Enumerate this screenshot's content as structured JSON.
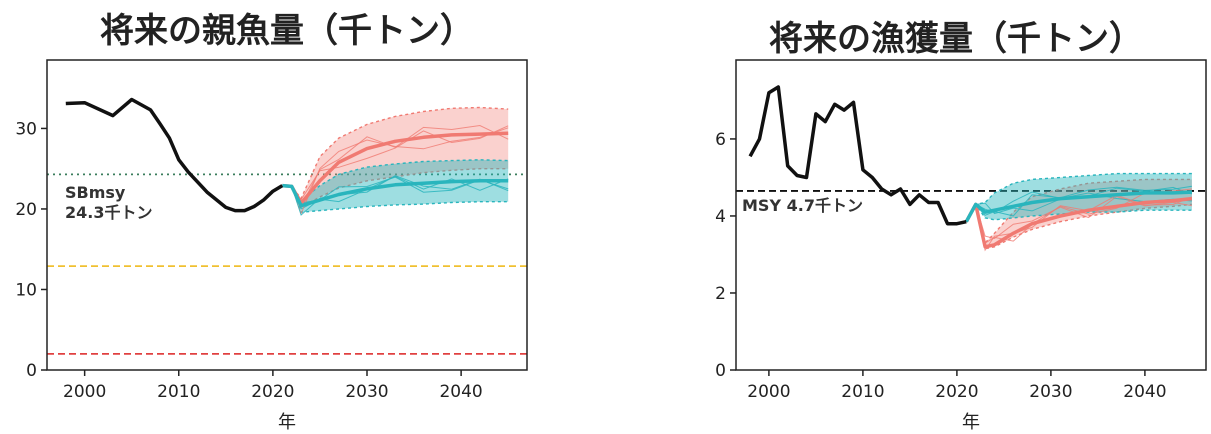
{
  "chart_data": [
    {
      "type": "line",
      "title": "将来の親魚量（千トン）",
      "xlabel": "年",
      "ylabel": "",
      "xlim": [
        1996,
        2047
      ],
      "ylim": [
        0,
        38.5
      ],
      "x_ticks": [
        2000,
        2010,
        2020,
        2030,
        2040
      ],
      "y_ticks": [
        0,
        10,
        20,
        30
      ],
      "x_tick_labels": [
        "2000",
        "2010",
        "2020",
        "2030",
        "2040"
      ],
      "y_tick_labels": [
        "0",
        "10",
        "20",
        "30"
      ],
      "grid": false,
      "colors": {
        "historical": "#111111",
        "red": "#f07a72",
        "teal": "#29b5bd",
        "ref_green": "#3a7d5c",
        "ref_yellow": "#f0c030",
        "ref_red": "#e04040"
      },
      "reference_lines": [
        {
          "y": 24.3,
          "style": "dotted",
          "color": "#3a7d5c",
          "label": "SBmsy\n24.3千トン"
        },
        {
          "y": 12.9,
          "style": "dashed",
          "color": "#f0c030",
          "label": ""
        },
        {
          "y": 2.0,
          "style": "dashed",
          "color": "#e04040",
          "label": ""
        }
      ],
      "series": [
        {
          "role": "historical",
          "x": [
            1998,
            2000,
            2003,
            2005,
            2007,
            2008,
            2009,
            2010,
            2011,
            2013,
            2015,
            2016,
            2017,
            2018,
            2019,
            2020,
            2021
          ],
          "y": [
            33.1,
            33.2,
            31.6,
            33.6,
            32.3,
            30.6,
            28.8,
            26.1,
            24.6,
            22.1,
            20.2,
            19.8,
            19.8,
            20.3,
            21.1,
            22.2,
            22.9
          ]
        },
        {
          "role": "scenario-red",
          "x": [
            2021,
            2022,
            2023,
            2025,
            2027,
            2030,
            2033,
            2036,
            2039,
            2042,
            2045
          ],
          "median": [
            22.9,
            22.8,
            20.7,
            23.5,
            25.8,
            27.5,
            28.4,
            28.9,
            29.2,
            29.3,
            29.4
          ],
          "lower": [
            22.9,
            22.8,
            20.2,
            21.5,
            22.6,
            23.5,
            24.0,
            24.5,
            24.8,
            25.0,
            25.0
          ],
          "upper": [
            22.9,
            22.8,
            21.3,
            26.5,
            28.8,
            30.5,
            31.5,
            32.1,
            32.5,
            32.6,
            32.4
          ]
        },
        {
          "role": "scenario-teal",
          "x": [
            2021,
            2022,
            2023,
            2025,
            2027,
            2030,
            2033,
            2036,
            2039,
            2042,
            2045
          ],
          "median": [
            22.9,
            22.8,
            20.4,
            21.1,
            21.8,
            22.5,
            23.0,
            23.2,
            23.4,
            23.5,
            23.5
          ],
          "lower": [
            22.9,
            22.8,
            19.6,
            19.8,
            20.0,
            20.3,
            20.5,
            20.6,
            20.8,
            20.9,
            20.9
          ],
          "upper": [
            22.9,
            22.8,
            21.0,
            22.9,
            24.3,
            25.2,
            25.6,
            25.9,
            26.0,
            26.1,
            26.0
          ]
        }
      ]
    },
    {
      "type": "line",
      "title": "将来の漁獲量（千トン）",
      "xlabel": "年",
      "ylabel": "",
      "xlim": [
        1996.5,
        2046.5
      ],
      "ylim": [
        0,
        8.05
      ],
      "x_ticks": [
        2000,
        2010,
        2020,
        2030,
        2040
      ],
      "y_ticks": [
        0,
        2,
        4,
        6
      ],
      "x_tick_labels": [
        "2000",
        "2010",
        "2020",
        "2030",
        "2040"
      ],
      "y_tick_labels": [
        "0",
        "2",
        "4",
        "6"
      ],
      "grid": false,
      "colors": {
        "historical": "#111111",
        "red": "#f07a72",
        "teal": "#29b5bd",
        "ref_black": "#111111"
      },
      "reference_lines": [
        {
          "y": 4.65,
          "style": "dashed",
          "color": "#111111",
          "label": "MSY 4.7千トン"
        }
      ],
      "series": [
        {
          "role": "historical",
          "x": [
            1998,
            1999,
            2000,
            2001,
            2002,
            2003,
            2004,
            2005,
            2006,
            2007,
            2008,
            2009,
            2010,
            2011,
            2012,
            2013,
            2014,
            2015,
            2016,
            2017,
            2018,
            2019,
            2020,
            2021
          ],
          "y": [
            5.55,
            6.0,
            7.2,
            7.35,
            5.3,
            5.05,
            5.0,
            6.65,
            6.45,
            6.9,
            6.75,
            6.95,
            5.2,
            5.0,
            4.7,
            4.55,
            4.7,
            4.3,
            4.55,
            4.35,
            4.35,
            3.8,
            3.8,
            3.85
          ]
        },
        {
          "role": "scenario-red",
          "x": [
            2021,
            2022,
            2023,
            2024,
            2026,
            2028,
            2031,
            2034,
            2037,
            2040,
            2043,
            2045
          ],
          "median": [
            3.85,
            4.3,
            3.2,
            3.25,
            3.55,
            3.8,
            4.0,
            4.15,
            4.25,
            4.35,
            4.4,
            4.45
          ],
          "lower": [
            3.85,
            4.3,
            3.15,
            3.2,
            3.45,
            3.65,
            3.85,
            4.0,
            4.1,
            4.2,
            4.25,
            4.3
          ],
          "upper": [
            3.85,
            4.3,
            3.3,
            3.55,
            4.1,
            4.5,
            4.7,
            4.85,
            4.9,
            4.95,
            4.95,
            4.95
          ]
        },
        {
          "role": "scenario-teal",
          "x": [
            2021,
            2022,
            2023,
            2024,
            2026,
            2028,
            2031,
            2034,
            2037,
            2040,
            2043,
            2045
          ],
          "median": [
            3.85,
            4.3,
            4.1,
            4.15,
            4.25,
            4.35,
            4.45,
            4.5,
            4.55,
            4.6,
            4.6,
            4.62
          ],
          "lower": [
            3.85,
            4.3,
            3.95,
            3.9,
            3.95,
            4.0,
            4.05,
            4.1,
            4.1,
            4.15,
            4.15,
            4.15
          ],
          "upper": [
            3.85,
            4.3,
            4.35,
            4.6,
            4.85,
            4.95,
            5.0,
            5.05,
            5.1,
            5.1,
            5.1,
            5.1
          ]
        }
      ]
    }
  ]
}
